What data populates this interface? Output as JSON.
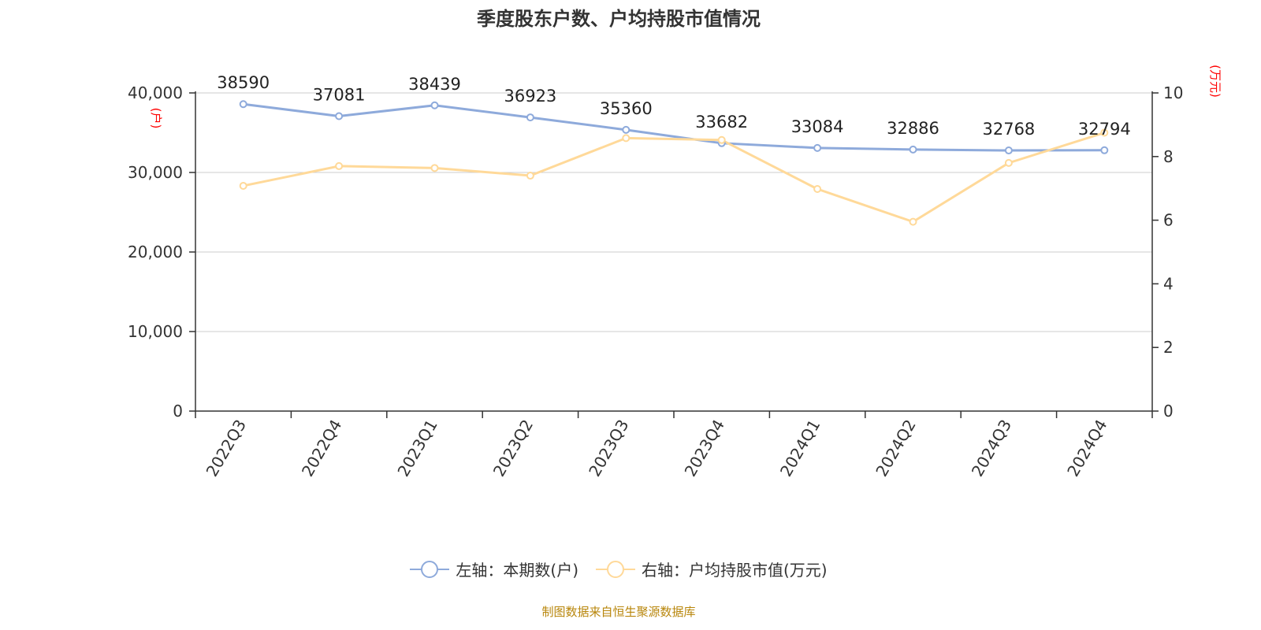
{
  "chart_data": {
    "type": "line",
    "title": "季度股东户数、户均持股市值情况",
    "categories": [
      "2022Q3",
      "2022Q4",
      "2023Q1",
      "2023Q2",
      "2023Q3",
      "2023Q4",
      "2024Q1",
      "2024Q2",
      "2024Q3",
      "2024Q4"
    ],
    "series": [
      {
        "name": "左轴：本期数(户)",
        "axis": "left",
        "color": "#8eaadb",
        "values": [
          38590,
          37081,
          38439,
          36923,
          35360,
          33682,
          33084,
          32886,
          32768,
          32794
        ],
        "data_labels": [
          "38590",
          "37081",
          "38439",
          "36923",
          "35360",
          "33682",
          "33084",
          "32886",
          "32768",
          "32794"
        ]
      },
      {
        "name": "右轴：户均持股市值(万元)",
        "axis": "right",
        "color": "#ffd999",
        "values": [
          7.08,
          7.7,
          7.64,
          7.4,
          8.58,
          8.52,
          6.98,
          5.95,
          7.8,
          8.75
        ]
      }
    ],
    "y_left": {
      "label": "(户)",
      "range": [
        0,
        40000
      ],
      "ticks": [
        0,
        10000,
        20000,
        30000,
        40000
      ],
      "tick_labels": [
        "0",
        "10,000",
        "20,000",
        "30,000",
        "40,000"
      ]
    },
    "y_right": {
      "label": "(万元)",
      "range": [
        0,
        10
      ],
      "ticks": [
        0,
        2,
        4,
        6,
        8,
        10
      ],
      "tick_labels": [
        "0",
        "2",
        "4",
        "6",
        "8",
        "10"
      ]
    },
    "grid": true,
    "legend_position": "bottom-center",
    "source": "制图数据来自恒生聚源数据库",
    "colors": {
      "axis": "#333333",
      "grid": "#cccccc",
      "unit_label": "#ff0000",
      "source": "#b8860b"
    }
  }
}
